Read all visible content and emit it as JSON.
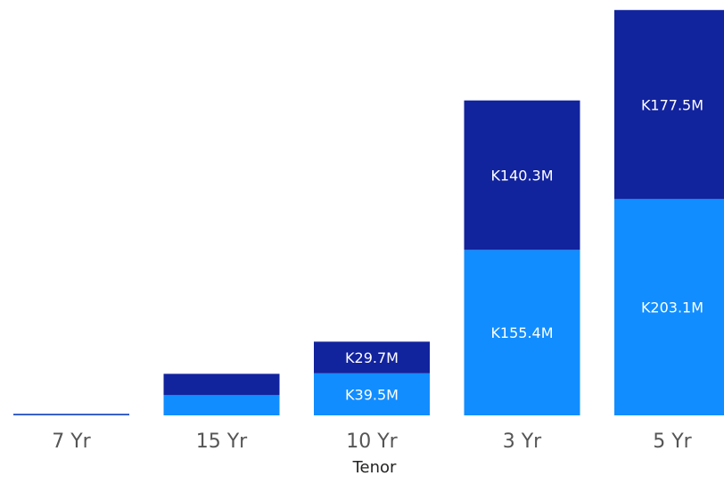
{
  "chart_data": {
    "type": "bar",
    "stacked": true,
    "categories": [
      "7 Yr",
      "15 Yr",
      "10 Yr",
      "3 Yr",
      "5 Yr"
    ],
    "series": [
      {
        "values": [
          0.4,
          19.0,
          39.5,
          155.4,
          203.1
        ],
        "labels": [
          "",
          "",
          "K39.5M",
          "K155.4M",
          "K203.1M"
        ],
        "color": "#118DFF"
      },
      {
        "values": [
          1.0,
          20.0,
          29.7,
          140.3,
          177.5
        ],
        "labels": [
          "",
          "",
          "K29.7M",
          "K140.3M",
          "K177.5M"
        ],
        "color": "#12239E"
      }
    ],
    "xlabel": "Tenor",
    "ylabel": "",
    "ylim": [
      0,
      390
    ],
    "grid": false,
    "legend": "none"
  }
}
